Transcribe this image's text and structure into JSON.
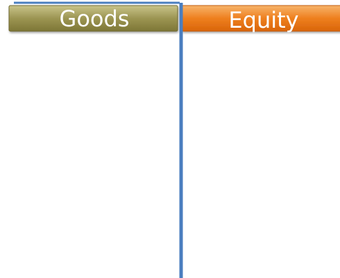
{
  "columns": [
    {
      "label": "Goods"
    },
    {
      "label": "Equity"
    }
  ]
}
